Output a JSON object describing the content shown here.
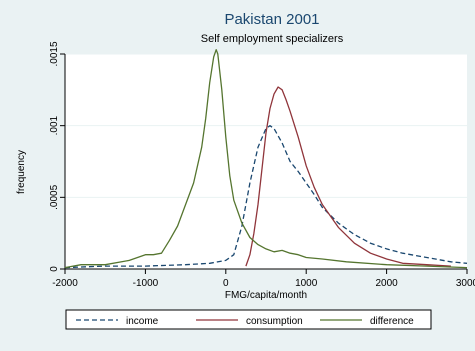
{
  "chart_data": {
    "type": "line",
    "title": "Pakistan 2001",
    "subtitle": "Self employment specializers",
    "xlabel": "FMG/capita/month",
    "ylabel": "frequency",
    "xlim": [
      -2000,
      3000
    ],
    "ylim": [
      0,
      0.0015
    ],
    "x_ticks": [
      -2000,
      -1000,
      0,
      1000,
      2000,
      3000
    ],
    "x_tick_labels": [
      "-2000",
      "-1000",
      "0",
      "1000",
      "2000",
      "3000"
    ],
    "y_ticks": [
      0,
      0.0005,
      0.001,
      0.0015
    ],
    "y_tick_labels": [
      "0",
      ".0005",
      ".001",
      ".0015"
    ],
    "grid": "horizontal",
    "legend_position": "bottom",
    "series": [
      {
        "name": "income",
        "color": "#1a476f",
        "style": "dashed",
        "x": [
          -2000,
          -1500,
          -1000,
          -500,
          -200,
          0,
          100,
          200,
          300,
          400,
          500,
          550,
          600,
          700,
          800,
          900,
          1000,
          1100,
          1200,
          1400,
          1600,
          1800,
          2000,
          2200,
          2500,
          2800,
          3000
        ],
        "y": [
          1e-05,
          2e-05,
          2e-05,
          3e-05,
          4e-05,
          6e-05,
          0.0001,
          0.0003,
          0.0006,
          0.00085,
          0.00098,
          0.001,
          0.00098,
          0.00088,
          0.00075,
          0.00068,
          0.0006,
          0.00052,
          0.00043,
          0.00032,
          0.00024,
          0.00018,
          0.00014,
          0.00011,
          8e-05,
          5e-05,
          4e-05
        ]
      },
      {
        "name": "consumption",
        "color": "#90353b",
        "style": "solid",
        "x": [
          250,
          300,
          350,
          400,
          450,
          500,
          550,
          600,
          650,
          700,
          750,
          800,
          900,
          1000,
          1100,
          1200,
          1400,
          1600,
          1800,
          2000,
          2200,
          2500,
          2800
        ],
        "y": [
          2e-05,
          0.0001,
          0.00025,
          0.00045,
          0.0007,
          0.00095,
          0.00112,
          0.00122,
          0.00127,
          0.00125,
          0.00118,
          0.0011,
          0.00092,
          0.00072,
          0.00057,
          0.00045,
          0.00029,
          0.00018,
          0.00011,
          7e-05,
          4e-05,
          3e-05,
          2e-05
        ]
      },
      {
        "name": "difference",
        "color": "#55752f",
        "style": "solid",
        "x": [
          -2000,
          -1800,
          -1500,
          -1200,
          -1000,
          -900,
          -800,
          -700,
          -600,
          -500,
          -400,
          -300,
          -250,
          -200,
          -150,
          -120,
          -100,
          -80,
          -50,
          0,
          50,
          100,
          200,
          300,
          400,
          500,
          600,
          700,
          800,
          900,
          1000,
          1200,
          1500,
          2000,
          2500,
          3000
        ],
        "y": [
          1e-05,
          3e-05,
          3e-05,
          6e-05,
          0.0001,
          0.0001,
          0.00011,
          0.0002,
          0.0003,
          0.00045,
          0.0006,
          0.00085,
          0.00105,
          0.0013,
          0.00148,
          0.00153,
          0.0015,
          0.0014,
          0.00125,
          0.00092,
          0.00065,
          0.00048,
          0.00032,
          0.00022,
          0.00017,
          0.00014,
          0.00012,
          0.00013,
          0.00011,
          0.0001,
          8e-05,
          7e-05,
          5e-05,
          3e-05,
          2e-05,
          1e-05
        ]
      }
    ]
  }
}
